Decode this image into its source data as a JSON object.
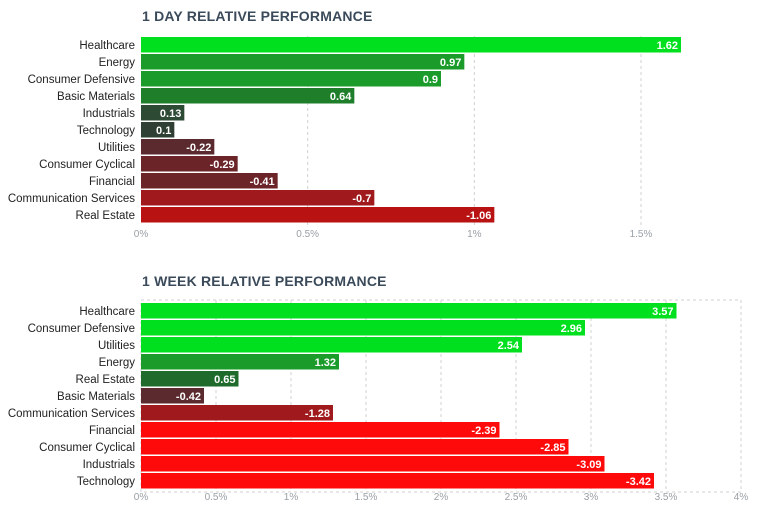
{
  "chart_data": [
    {
      "type": "bar",
      "orientation": "horizontal",
      "title": "1 DAY RELATIVE PERFORMANCE",
      "categories": [
        "Healthcare",
        "Energy",
        "Consumer Defensive",
        "Basic Materials",
        "Industrials",
        "Technology",
        "Utilities",
        "Consumer Cyclical",
        "Financial",
        "Communication Services",
        "Real Estate"
      ],
      "values": [
        1.62,
        0.97,
        0.9,
        0.64,
        0.13,
        0.1,
        -0.22,
        -0.29,
        -0.41,
        -0.7,
        -1.06
      ],
      "value_labels": [
        "1.62",
        "0.97",
        "0.9",
        "0.64",
        "0.13",
        "0.1",
        "-0.22",
        "-0.29",
        "-0.41",
        "-0.7",
        "-1.06"
      ],
      "colors": [
        "#00e01e",
        "#1a9b2a",
        "#1a9b2a",
        "#1e7e2a",
        "#2d4a34",
        "#2f3f33",
        "#5a2a2e",
        "#6b2428",
        "#6b2428",
        "#a0191c",
        "#b81212"
      ],
      "xlim": [
        0,
        1.62
      ],
      "xticks": [
        0,
        0.5,
        1,
        1.5
      ],
      "xtick_labels": [
        "0%",
        "0.5%",
        "1%",
        "1.5%"
      ],
      "grid": true
    },
    {
      "type": "bar",
      "orientation": "horizontal",
      "title": "1 WEEK RELATIVE PERFORMANCE",
      "categories": [
        "Healthcare",
        "Consumer Defensive",
        "Utilities",
        "Energy",
        "Real Estate",
        "Basic Materials",
        "Communication Services",
        "Financial",
        "Consumer Cyclical",
        "Industrials",
        "Technology"
      ],
      "values": [
        3.57,
        2.96,
        2.54,
        1.32,
        0.65,
        -0.42,
        -1.28,
        -2.39,
        -2.85,
        -3.09,
        -3.42
      ],
      "value_labels": [
        "3.57",
        "2.96",
        "2.54",
        "1.32",
        "0.65",
        "-0.42",
        "-1.28",
        "-2.39",
        "-2.85",
        "-3.09",
        "-3.42"
      ],
      "colors": [
        "#00e01e",
        "#00e01e",
        "#00e01e",
        "#1a9b2a",
        "#1e6b2c",
        "#5a2a2e",
        "#a0191c",
        "#ff0a0a",
        "#ff0a0a",
        "#ff0a0a",
        "#ff0a0a"
      ],
      "xlim": [
        0,
        4
      ],
      "xticks": [
        0,
        0.5,
        1,
        1.5,
        2,
        2.5,
        3,
        3.5,
        4
      ],
      "xtick_labels": [
        "0%",
        "0.5%",
        "1%",
        "1.5%",
        "2%",
        "2.5%",
        "3%",
        "3.5%",
        "4%"
      ],
      "grid": true
    }
  ]
}
